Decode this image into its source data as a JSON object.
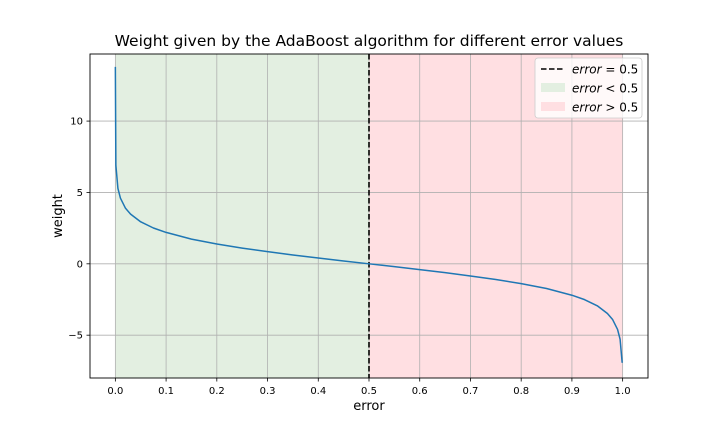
{
  "chart_data": {
    "type": "line",
    "title": "Weight given by the AdaBoost algorithm for different error values",
    "xlabel": "error",
    "ylabel": "weight",
    "xlim": [
      -0.05,
      1.05
    ],
    "ylim": [
      -8.0,
      14.7
    ],
    "xticks": [
      0.0,
      0.1,
      0.2,
      0.3,
      0.4,
      0.5,
      0.6,
      0.7,
      0.8,
      0.9,
      1.0
    ],
    "xtick_labels": [
      "0.0",
      "0.1",
      "0.2",
      "0.3",
      "0.4",
      "0.5",
      "0.6",
      "0.7",
      "0.8",
      "0.9",
      "1.0"
    ],
    "yticks": [
      -5,
      0,
      5,
      10
    ],
    "ytick_labels": [
      "−5",
      "0",
      "5",
      "10"
    ],
    "grid": true,
    "legend_position": "top-right",
    "series": [
      {
        "color": "#1f77b4",
        "x": [
          1e-06,
          0.001,
          0.005,
          0.01,
          0.02,
          0.03,
          0.05,
          0.075,
          0.1,
          0.15,
          0.2,
          0.25,
          0.3,
          0.35,
          0.4,
          0.45,
          0.5,
          0.55,
          0.6,
          0.65,
          0.7,
          0.75,
          0.8,
          0.85,
          0.9,
          0.925,
          0.95,
          0.97,
          0.98,
          0.99,
          0.995,
          0.999,
          0.99999
        ],
        "y": [
          13.8,
          6.9,
          5.29,
          4.6,
          3.89,
          3.48,
          2.94,
          2.51,
          2.2,
          1.73,
          1.39,
          1.1,
          0.85,
          0.62,
          0.41,
          0.2,
          0.0,
          -0.2,
          -0.41,
          -0.62,
          -0.85,
          -1.1,
          -1.39,
          -1.73,
          -2.2,
          -2.51,
          -2.94,
          -3.48,
          -3.89,
          -4.6,
          -5.29,
          -6.9,
          -6.9
        ]
      }
    ],
    "vline": {
      "x": 0.5,
      "color": "#000000",
      "style": "dashed"
    },
    "regions": [
      {
        "x0": 0.0,
        "x1": 0.5,
        "color": "#e3efe1"
      },
      {
        "x0": 0.5,
        "x1": 1.0,
        "color": "#ffdfe2"
      }
    ],
    "legend": [
      {
        "type": "dashed-line",
        "var": "error",
        "op": " = 0.5",
        "color": "#000000"
      },
      {
        "type": "patch",
        "var": "error",
        "op": " < 0.5",
        "color": "#e3efe1"
      },
      {
        "type": "patch",
        "var": "error",
        "op": " > 0.5",
        "color": "#ffdfe2"
      }
    ]
  }
}
